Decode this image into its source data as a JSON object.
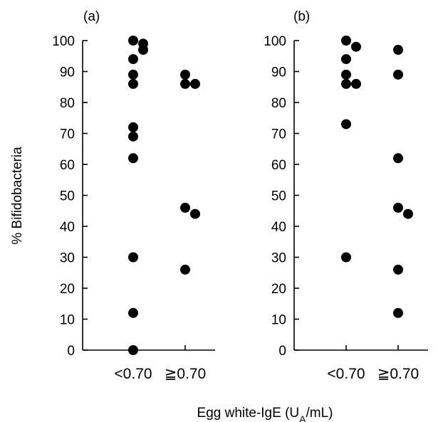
{
  "chart_data": [
    {
      "type": "scatter",
      "panel_label": "(a)",
      "categories": [
        "<0.70",
        "≧0.70"
      ],
      "ylim": [
        0,
        100
      ],
      "yticks": [
        0,
        10,
        20,
        30,
        40,
        50,
        60,
        70,
        80,
        90,
        100
      ],
      "series": [
        {
          "category": "<0.70",
          "values": [
            100,
            99,
            97,
            94,
            89,
            86,
            72,
            69,
            62,
            30,
            12,
            0
          ]
        },
        {
          "category": "≧0.70",
          "values": [
            89,
            86,
            86,
            46,
            44,
            26
          ]
        }
      ]
    },
    {
      "type": "scatter",
      "panel_label": "(b)",
      "categories": [
        "<0.70",
        "≧0.70"
      ],
      "ylim": [
        0,
        100
      ],
      "yticks": [
        0,
        10,
        20,
        30,
        40,
        50,
        60,
        70,
        80,
        90,
        100
      ],
      "series": [
        {
          "category": "<0.70",
          "values": [
            100,
            98,
            94,
            89,
            86,
            86,
            73,
            30
          ]
        },
        {
          "category": "≧0.70",
          "values": [
            97,
            89,
            62,
            46,
            44,
            26,
            12
          ]
        }
      ]
    }
  ],
  "ylabel": "% Bifidobacteria",
  "xlabel": {
    "prefix": "Egg white-IgE (U",
    "subscript": "A",
    "suffix": "/mL)"
  },
  "colors": {
    "marker": "#000000",
    "axis": "#000000"
  }
}
